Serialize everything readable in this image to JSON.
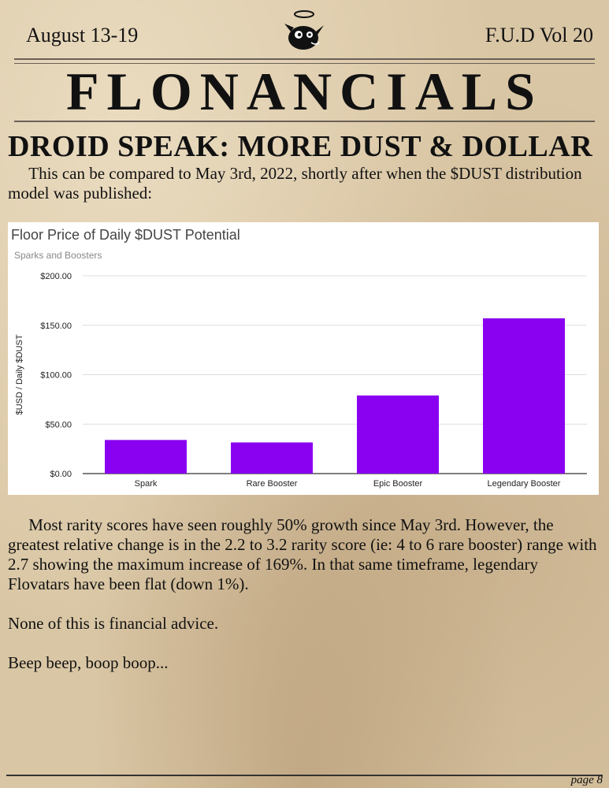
{
  "header": {
    "date": "August 13-19",
    "volume": "F.U.D Vol 20",
    "masthead": "FLONANCIALS"
  },
  "article": {
    "headline": "DROID SPEAK: MORE DUST & DOLLAR",
    "intro": "This can be compared to May 3rd, 2022, shortly after when the $DUST distribution model was published:",
    "paragraphs": [
      "Most rarity scores have seen roughly 50% growth since May 3rd. However, the greatest relative change is in the 2.2 to 3.2 rarity score (ie: 4 to 6 rare booster) range with 2.7 showing the maximum increase of 169%. In that same timeframe, legendary Flovatars have been flat (down 1%).",
      "None of this is financial advice.",
      "Beep beep, boop boop..."
    ]
  },
  "chart_data": {
    "type": "bar",
    "title": "Floor Price of Daily $DUST Potential",
    "subtitle": "Sparks and Boosters",
    "xlabel": "",
    "ylabel": "$USD / Daily $DUST",
    "categories": [
      "Spark",
      "Rare Booster",
      "Epic Booster",
      "Legendary Booster"
    ],
    "values": [
      34,
      31.5,
      79,
      157
    ],
    "ylim": [
      0,
      200
    ],
    "yticks": [
      "$0.00",
      "$50.00",
      "$100.00",
      "$150.00",
      "$200.00"
    ],
    "bar_color": "#8a00f0",
    "grid": true,
    "legend": "none"
  },
  "footer": {
    "page": "page 8"
  }
}
